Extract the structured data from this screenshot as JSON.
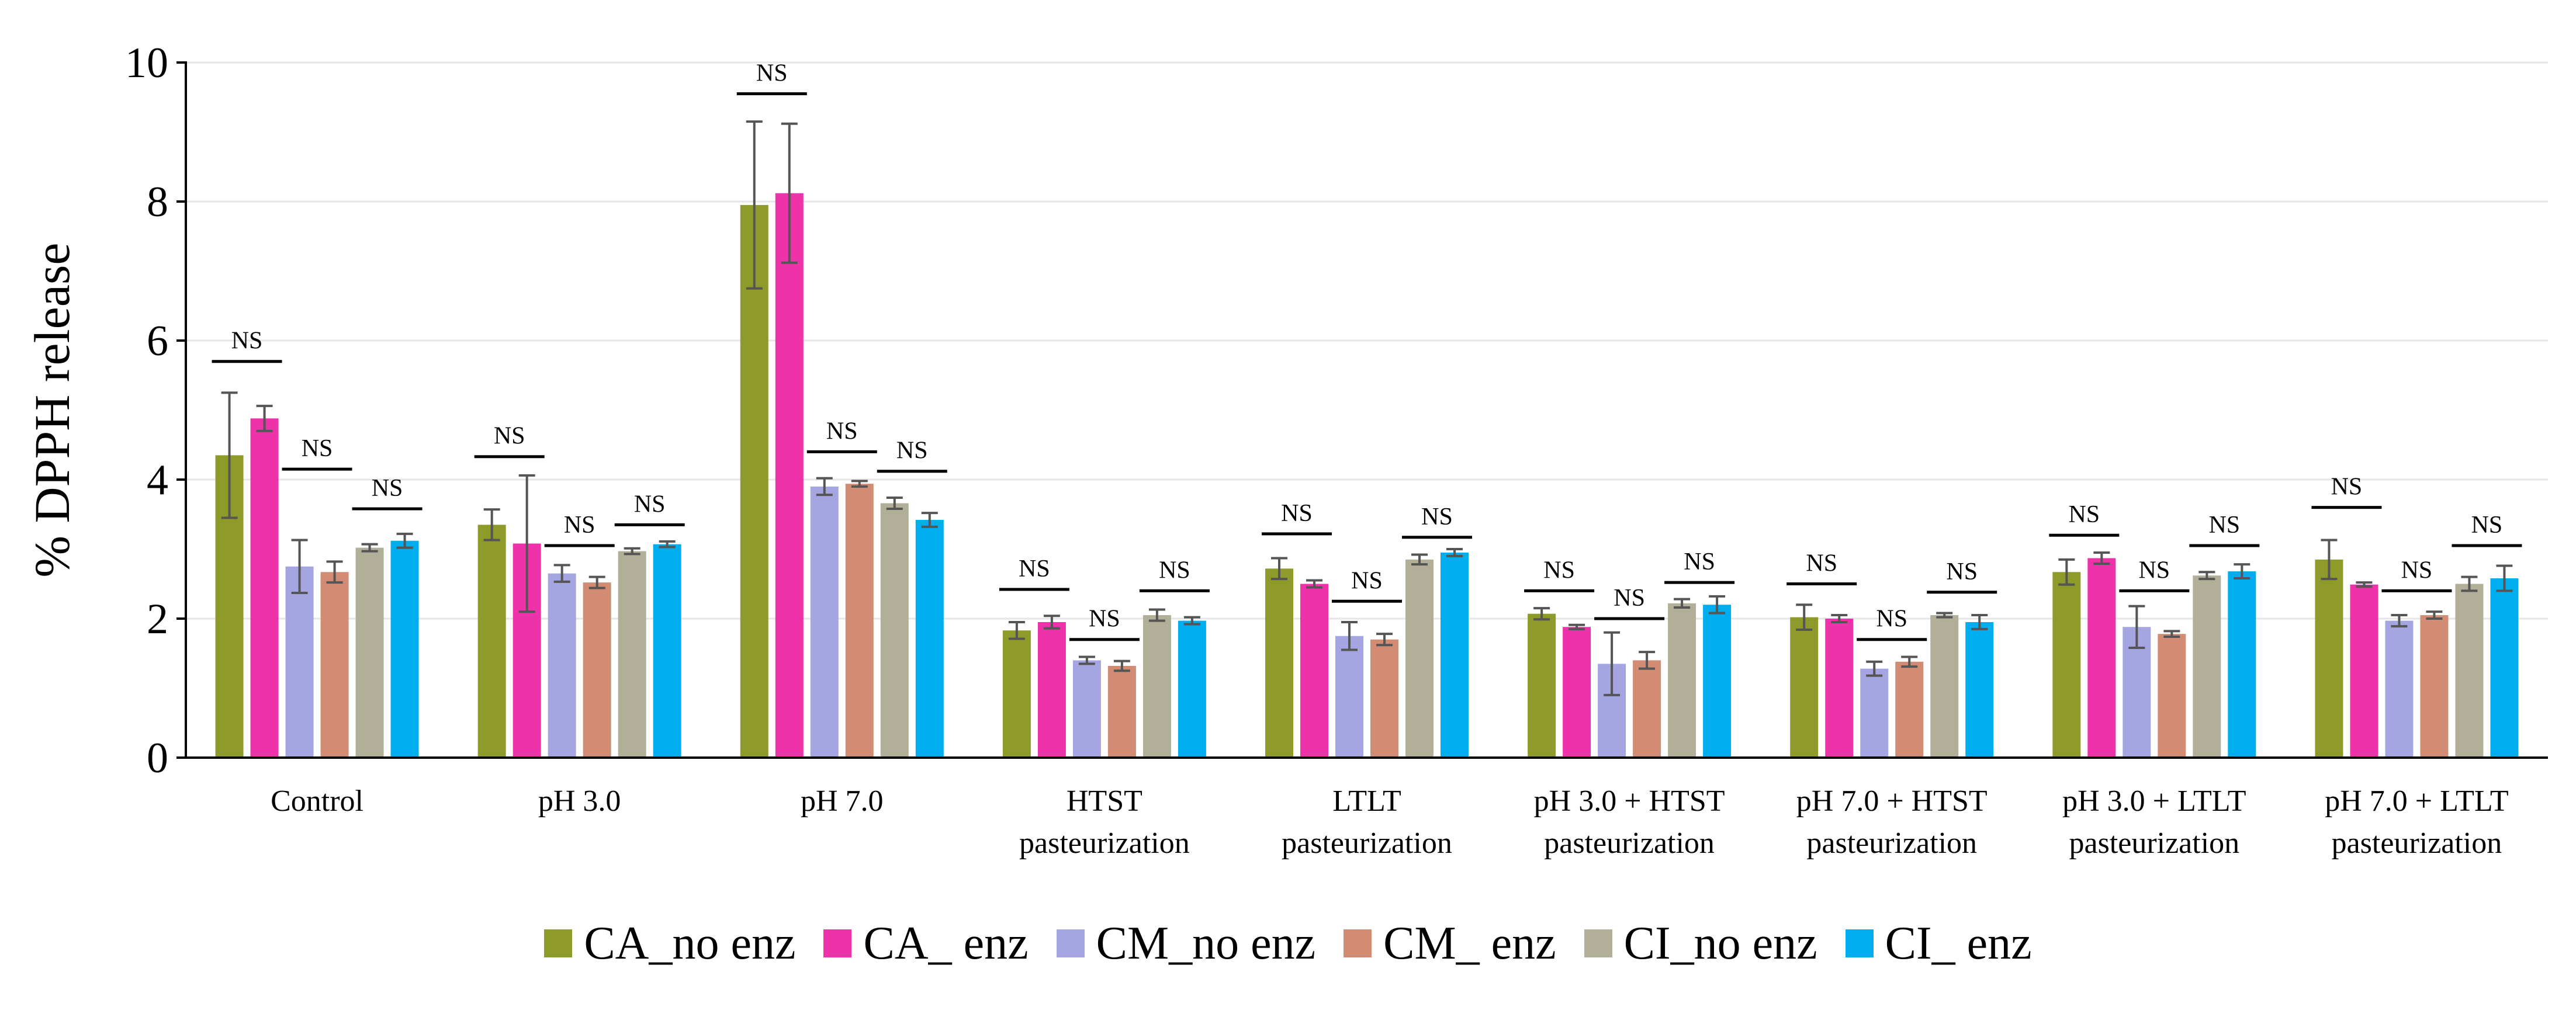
{
  "chart_data": {
    "type": "bar",
    "ylabel": "% DPPH release",
    "ylim": [
      0,
      10
    ],
    "yticks": [
      "0",
      "2",
      "4",
      "6",
      "8",
      "10"
    ],
    "grid": true,
    "legend_position": "bottom",
    "categories": [
      [
        "Control"
      ],
      [
        "pH 3.0"
      ],
      [
        "pH 7.0"
      ],
      [
        "HTST",
        "pasteurization"
      ],
      [
        "LTLT",
        "pasteurization"
      ],
      [
        "pH 3.0 + HTST",
        "pasteurization"
      ],
      [
        "pH 7.0 + HTST",
        "pasteurization"
      ],
      [
        "pH 3.0 + LTLT",
        "pasteurization"
      ],
      [
        "pH 7.0 + LTLT",
        "pasteurization"
      ]
    ],
    "series": [
      {
        "name": "CA_no enz",
        "color": "#8E9A2A",
        "values": [
          4.35,
          3.35,
          7.95,
          1.83,
          2.72,
          2.07,
          2.02,
          2.67,
          2.85
        ],
        "errors": [
          0.9,
          0.22,
          1.2,
          0.12,
          0.15,
          0.08,
          0.18,
          0.18,
          0.28
        ]
      },
      {
        "name": "CA_ enz",
        "color": "#EE33AA",
        "values": [
          4.88,
          3.08,
          8.12,
          1.95,
          2.5,
          1.88,
          2.0,
          2.87,
          2.49
        ],
        "errors": [
          0.18,
          0.98,
          1.0,
          0.09,
          0.05,
          0.03,
          0.05,
          0.08,
          0.03
        ]
      },
      {
        "name": "CM_no enz",
        "color": "#A5A5E2",
        "values": [
          2.75,
          2.65,
          3.9,
          1.4,
          1.75,
          1.35,
          1.28,
          1.88,
          1.97
        ],
        "errors": [
          0.38,
          0.12,
          0.12,
          0.05,
          0.2,
          0.45,
          0.1,
          0.3,
          0.08
        ]
      },
      {
        "name": "CM_ enz",
        "color": "#D28C74",
        "values": [
          2.67,
          2.52,
          3.94,
          1.32,
          1.7,
          1.4,
          1.38,
          1.78,
          2.05
        ],
        "errors": [
          0.15,
          0.08,
          0.04,
          0.07,
          0.08,
          0.12,
          0.07,
          0.04,
          0.05
        ]
      },
      {
        "name": "CI_no enz",
        "color": "#B2AF98",
        "values": [
          3.02,
          2.97,
          3.66,
          2.05,
          2.85,
          2.22,
          2.05,
          2.62,
          2.5
        ],
        "errors": [
          0.05,
          0.04,
          0.08,
          0.08,
          0.07,
          0.06,
          0.03,
          0.05,
          0.1
        ]
      },
      {
        "name": "CI_ enz",
        "color": "#00AEEF",
        "values": [
          3.12,
          3.07,
          3.42,
          1.97,
          2.95,
          2.2,
          1.95,
          2.68,
          2.58
        ],
        "errors": [
          0.1,
          0.04,
          0.1,
          0.05,
          0.05,
          0.12,
          0.1,
          0.1,
          0.18
        ]
      }
    ],
    "annotations": [
      {
        "text": "NS",
        "group": 0,
        "pair": 0,
        "level": 5.7
      },
      {
        "text": "NS",
        "group": 0,
        "pair": 1,
        "level": 4.15
      },
      {
        "text": "NS",
        "group": 0,
        "pair": 2,
        "level": 3.58
      },
      {
        "text": "NS",
        "group": 1,
        "pair": 0,
        "level": 4.33
      },
      {
        "text": "NS",
        "group": 1,
        "pair": 1,
        "level": 3.05
      },
      {
        "text": "NS",
        "group": 1,
        "pair": 2,
        "level": 3.35
      },
      {
        "text": "NS",
        "group": 2,
        "pair": 0,
        "level": 9.55
      },
      {
        "text": "NS",
        "group": 2,
        "pair": 1,
        "level": 4.4
      },
      {
        "text": "NS",
        "group": 2,
        "pair": 2,
        "level": 4.12
      },
      {
        "text": "NS",
        "group": 3,
        "pair": 0,
        "level": 2.42
      },
      {
        "text": "NS",
        "group": 3,
        "pair": 1,
        "level": 1.7
      },
      {
        "text": "NS",
        "group": 3,
        "pair": 2,
        "level": 2.4
      },
      {
        "text": "NS",
        "group": 4,
        "pair": 0,
        "level": 3.22
      },
      {
        "text": "NS",
        "group": 4,
        "pair": 1,
        "level": 2.25
      },
      {
        "text": "NS",
        "group": 4,
        "pair": 2,
        "level": 3.17
      },
      {
        "text": "NS",
        "group": 5,
        "pair": 0,
        "level": 2.4
      },
      {
        "text": "NS",
        "group": 5,
        "pair": 1,
        "level": 2.0
      },
      {
        "text": "NS",
        "group": 5,
        "pair": 2,
        "level": 2.52
      },
      {
        "text": "NS",
        "group": 6,
        "pair": 0,
        "level": 2.5
      },
      {
        "text": "NS",
        "group": 6,
        "pair": 1,
        "level": 1.7
      },
      {
        "text": "NS",
        "group": 6,
        "pair": 2,
        "level": 2.38
      },
      {
        "text": "NS",
        "group": 7,
        "pair": 0,
        "level": 3.2
      },
      {
        "text": "NS",
        "group": 7,
        "pair": 1,
        "level": 2.4
      },
      {
        "text": "NS",
        "group": 7,
        "pair": 2,
        "level": 3.05
      },
      {
        "text": "NS",
        "group": 8,
        "pair": 0,
        "level": 3.6
      },
      {
        "text": "NS",
        "group": 8,
        "pair": 1,
        "level": 2.4
      },
      {
        "text": "NS",
        "group": 8,
        "pair": 2,
        "level": 3.05
      }
    ]
  }
}
